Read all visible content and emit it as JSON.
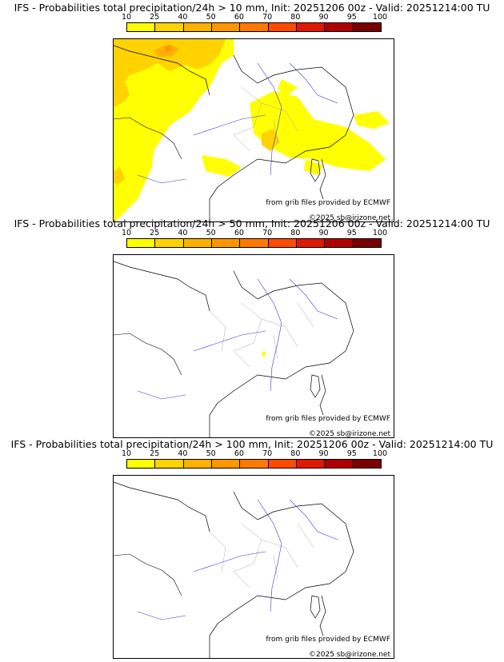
{
  "colorbar": {
    "ticks": [
      "10",
      "25",
      "40",
      "50",
      "60",
      "70",
      "80",
      "90",
      "95",
      "100"
    ],
    "colors": [
      "#ffff00",
      "#ffd200",
      "#ffb000",
      "#ff9600",
      "#ff7800",
      "#ff4a00",
      "#e01800",
      "#b00000",
      "#7a0000"
    ]
  },
  "panels": [
    {
      "title": "IFS - Probabilities total precipitation/24h > 10 mm, Init: 20251206 00z - Valid: 20251214:00 TU",
      "grib_credit": "from grib files provided by ECMWF",
      "copyright": "©2025 sb@irizone.net"
    },
    {
      "title": "IFS - Probabilities total precipitation/24h > 50 mm, Init: 20251206 00z - Valid: 20251214:00 TU",
      "grib_credit": "from grib files provided by ECMWF",
      "copyright": "©2025 sb@irizone.net"
    },
    {
      "title": "IFS - Probabilities total precipitation/24h > 100 mm, Init: 20251206 00z - Valid: 20251214:00 TU",
      "grib_credit": "from grib files provided by ECMWF",
      "copyright": "©2025 sb@irizone.net"
    }
  ]
}
